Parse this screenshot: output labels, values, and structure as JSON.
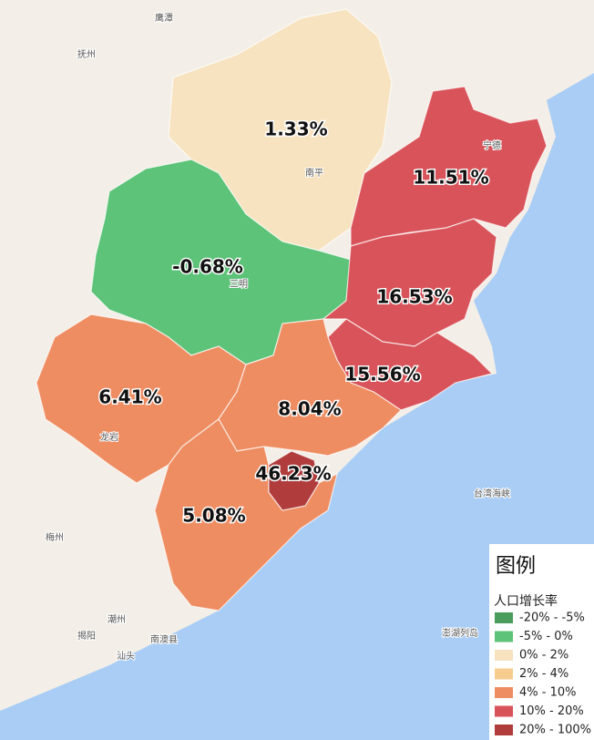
{
  "map": {
    "regions": [
      {
        "label": "1.33%"
      },
      {
        "label": "11.51%"
      },
      {
        "label": "-0.68%"
      },
      {
        "label": "16.53%"
      },
      {
        "label": "15.56%"
      },
      {
        "label": "6.41%"
      },
      {
        "label": "8.04%"
      },
      {
        "label": "46.23%"
      },
      {
        "label": "5.08%"
      }
    ],
    "places": [
      "抚州",
      "鹰潭",
      "梅州",
      "揭阳",
      "潮州",
      "汕头",
      "南澳县",
      "台湾海峡",
      "澎湖列岛",
      "三明",
      "龙岩",
      "南平",
      "宁德"
    ]
  },
  "legend": {
    "title": "图例",
    "subtitle": "人口增长率",
    "items": [
      {
        "label": "-20% - -5%",
        "color": "#4a9c5d"
      },
      {
        "label": "-5% - 0%",
        "color": "#5cc378"
      },
      {
        "label": "0% - 2%",
        "color": "#f7e3c0"
      },
      {
        "label": "2% - 4%",
        "color": "#f6cd8f"
      },
      {
        "label": "4% - 10%",
        "color": "#ef8d62"
      },
      {
        "label": "10% - 20%",
        "color": "#d9545a"
      },
      {
        "label": "20% - 100%",
        "color": "#b03c3c"
      }
    ]
  }
}
